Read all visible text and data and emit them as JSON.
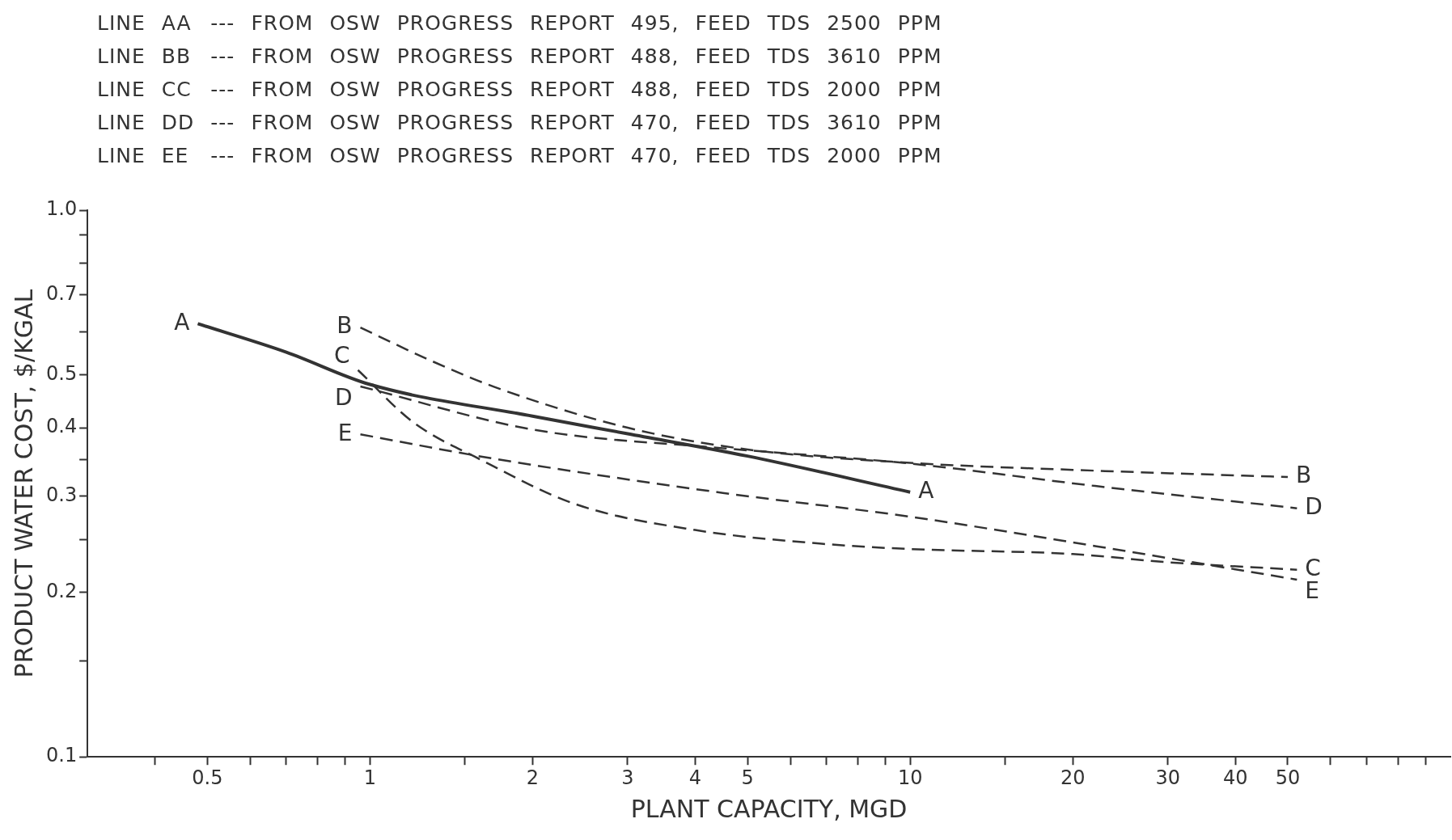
{
  "chart_data": {
    "type": "line",
    "annotations": [
      "LINE AA --- FROM OSW PROGRESS REPORT 495, FEED TDS 2500 PPM",
      "LINE BB --- FROM OSW PROGRESS REPORT 488, FEED TDS 3610 PPM",
      "LINE CC --- FROM OSW PROGRESS REPORT 488, FEED TDS 2000 PPM",
      "LINE DD --- FROM OSW PROGRESS REPORT 470, FEED TDS 3610 PPM",
      "LINE EE --- FROM OSW PROGRESS REPORT 470, FEED TDS 2000 PPM"
    ],
    "xlabel": "PLANT CAPACITY, MGD",
    "ylabel": "PRODUCT WATER COST, $/KGAL",
    "log": "xy",
    "grid": false,
    "legend": false,
    "marker": "none",
    "xlim": [
      0.3,
      100
    ],
    "xticks": [
      {
        "value": 0.4,
        "label": null
      },
      0.5,
      {
        "value": 0.6,
        "label": null
      },
      {
        "value": 0.7,
        "label": null
      },
      {
        "value": 0.8,
        "label": null
      },
      {
        "value": 0.9,
        "label": null
      },
      1,
      {
        "value": 1.5,
        "label": null
      },
      2,
      3,
      4,
      5,
      {
        "value": 6,
        "label": null
      },
      {
        "value": 7,
        "label": null
      },
      {
        "value": 8,
        "label": null
      },
      {
        "value": 9,
        "label": null
      },
      10,
      {
        "value": 15,
        "label": null
      },
      20,
      30,
      40,
      50,
      {
        "value": 60,
        "label": null
      },
      {
        "value": 70,
        "label": null
      },
      {
        "value": 80,
        "label": null
      },
      {
        "value": 90,
        "label": null
      }
    ],
    "ylim": [
      0.1,
      1
    ],
    "yticks": [
      0.1,
      {
        "value": 0.15,
        "label": null
      },
      0.2,
      {
        "value": 0.25,
        "label": null
      },
      0.3,
      {
        "value": 0.35,
        "label": null
      },
      0.4,
      0.5,
      {
        "value": 0.6,
        "label": null
      },
      0.7,
      {
        "value": 0.8,
        "label": null
      },
      {
        "value": 0.9,
        "label": null
      },
      {
        "value": 1,
        "label": "1.0"
      }
    ],
    "series": [
      {
        "name": "A",
        "color": "#333333",
        "line_style": "solid",
        "x": [
          0.48,
          0.7,
          1,
          2,
          3,
          5,
          10
        ],
        "values": [
          0.62,
          0.55,
          0.48,
          0.42,
          0.39,
          0.355,
          0.305
        ]
      },
      {
        "name": "B",
        "color": "#333333",
        "line_style": "dashed",
        "x": [
          0.96,
          1.3,
          1.7,
          3,
          5,
          10,
          20,
          50
        ],
        "values": [
          0.61,
          0.53,
          0.475,
          0.4,
          0.365,
          0.345,
          0.335,
          0.325
        ]
      },
      {
        "name": "C",
        "color": "#333333",
        "line_style": "dashed",
        "x": [
          0.95,
          1.2,
          1.6,
          2.4,
          4,
          7,
          10,
          20,
          30,
          52
        ],
        "values": [
          0.51,
          0.41,
          0.35,
          0.29,
          0.26,
          0.245,
          0.24,
          0.235,
          0.227,
          0.22
        ]
      },
      {
        "name": "D",
        "color": "#333333",
        "line_style": "dashed",
        "x": [
          0.96,
          2,
          4.5,
          10,
          22,
          52
        ],
        "values": [
          0.476,
          0.397,
          0.367,
          0.344,
          0.313,
          0.285
        ]
      },
      {
        "name": "E",
        "color": "#333333",
        "line_style": "dashed",
        "x": [
          0.96,
          1.7,
          4.5,
          10,
          22,
          52
        ],
        "values": [
          0.389,
          0.351,
          0.304,
          0.275,
          0.243,
          0.211
        ]
      }
    ]
  }
}
